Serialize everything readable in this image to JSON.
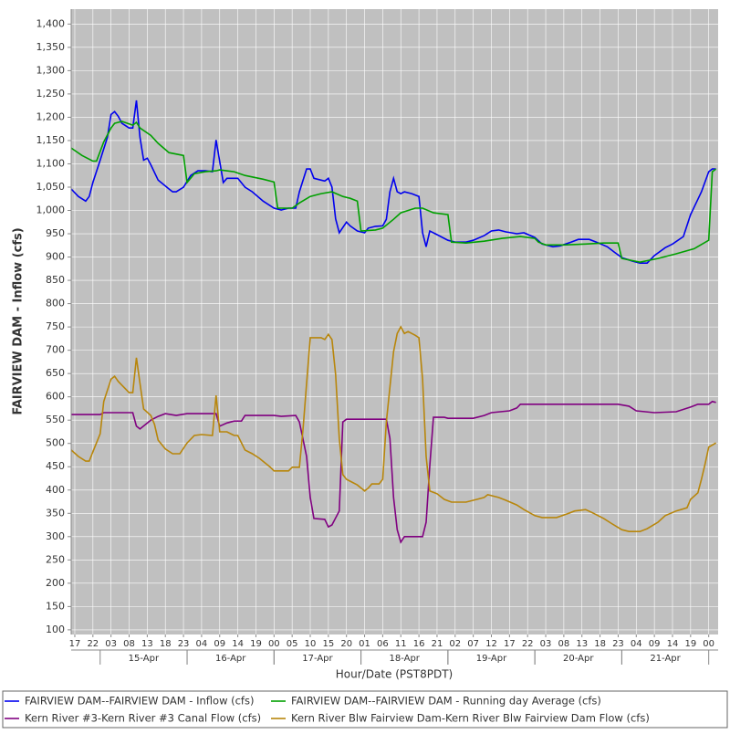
{
  "chart_data": {
    "type": "line",
    "y_label": "FAIRVIEW DAM - Inflow (cfs)",
    "x_label": "Hour/Date (PST8PDT)",
    "xlim": [
      16,
      194.6
    ],
    "ylim": [
      90,
      1432
    ],
    "grid": true,
    "yticks": [
      100,
      150,
      200,
      250,
      300,
      350,
      400,
      450,
      500,
      550,
      600,
      650,
      700,
      750,
      800,
      850,
      900,
      950,
      {
        "value": 1000,
        "label": "1,000"
      },
      {
        "value": 1050,
        "label": "1,050"
      },
      {
        "value": 1100,
        "label": "1,100"
      },
      {
        "value": 1150,
        "label": "1,150"
      },
      {
        "value": 1200,
        "label": "1,200"
      },
      {
        "value": 1250,
        "label": "1,250"
      },
      {
        "value": 1300,
        "label": "1,300"
      },
      {
        "value": 1350,
        "label": "1,350"
      },
      {
        "value": 1400,
        "label": "1,400"
      }
    ],
    "xticks": [
      {
        "value": 17,
        "label": "17"
      },
      {
        "value": 22,
        "label": "22"
      },
      {
        "value": 27,
        "label": "03"
      },
      {
        "value": 32,
        "label": "08"
      },
      {
        "value": 37,
        "label": "13"
      },
      {
        "value": 42,
        "label": "18"
      },
      {
        "value": 47,
        "label": "23"
      },
      {
        "value": 52,
        "label": "04"
      },
      {
        "value": 57,
        "label": "09"
      },
      {
        "value": 62,
        "label": "14"
      },
      {
        "value": 67,
        "label": "19"
      },
      {
        "value": 72,
        "label": "00"
      },
      {
        "value": 77,
        "label": "05"
      },
      {
        "value": 82,
        "label": "10"
      },
      {
        "value": 87,
        "label": "15"
      },
      {
        "value": 92,
        "label": "20"
      },
      {
        "value": 97,
        "label": "01"
      },
      {
        "value": 102,
        "label": "06"
      },
      {
        "value": 107,
        "label": "11"
      },
      {
        "value": 112,
        "label": "16"
      },
      {
        "value": 117,
        "label": "21"
      },
      {
        "value": 122,
        "label": "02"
      },
      {
        "value": 127,
        "label": "07"
      },
      {
        "value": 132,
        "label": "12"
      },
      {
        "value": 137,
        "label": "17"
      },
      {
        "value": 142,
        "label": "22"
      },
      {
        "value": 147,
        "label": "03"
      },
      {
        "value": 152,
        "label": "08"
      },
      {
        "value": 157,
        "label": "13"
      },
      {
        "value": 162,
        "label": "18"
      },
      {
        "value": 167,
        "label": "23"
      },
      {
        "value": 172,
        "label": "04"
      },
      {
        "value": 177,
        "label": "09"
      },
      {
        "value": 182,
        "label": "14"
      },
      {
        "value": 187,
        "label": "19"
      },
      {
        "value": 192,
        "label": "00"
      }
    ],
    "date_labels": [
      {
        "value": 36,
        "label": "15-Apr"
      },
      {
        "value": 60,
        "label": "16-Apr"
      },
      {
        "value": 84,
        "label": "17-Apr"
      },
      {
        "value": 108,
        "label": "18-Apr"
      },
      {
        "value": 132,
        "label": "19-Apr"
      },
      {
        "value": 156,
        "label": "20-Apr"
      },
      {
        "value": 180,
        "label": "21-Apr"
      }
    ],
    "series": [
      {
        "name": "FAIRVIEW DAM--FAIRVIEW DAM - Inflow  (cfs)",
        "color": "#0000ee",
        "x": [
          16,
          18,
          20,
          21,
          22,
          24,
          26,
          27,
          28,
          29,
          30,
          32,
          33,
          34,
          35,
          36,
          37,
          38,
          40,
          43,
          44,
          45,
          47,
          49,
          51,
          53,
          55,
          56,
          58,
          59,
          61,
          62,
          64,
          66,
          69,
          72,
          74,
          76,
          78,
          79,
          81,
          82,
          83,
          85,
          86,
          87,
          88,
          89,
          90,
          92,
          93,
          95,
          97,
          98,
          100,
          102,
          103,
          104,
          105,
          106,
          107,
          108,
          110,
          112,
          113,
          114,
          115,
          117,
          120,
          122,
          125,
          127,
          130,
          132,
          134,
          136,
          139,
          141,
          144,
          146,
          149,
          151,
          154,
          156,
          159,
          161,
          164,
          166,
          168,
          171,
          173,
          175,
          177,
          180,
          182,
          185,
          187,
          190,
          192,
          193,
          194
        ],
        "values": [
          1046,
          1030,
          1020,
          1030,
          1060,
          1108,
          1157,
          1206,
          1212,
          1202,
          1187,
          1177,
          1177,
          1236,
          1157,
          1108,
          1112,
          1098,
          1065,
          1046,
          1040,
          1040,
          1050,
          1075,
          1085,
          1085,
          1083,
          1151,
          1060,
          1069,
          1069,
          1069,
          1050,
          1040,
          1020,
          1005,
          1001,
          1005,
          1005,
          1040,
          1089,
          1089,
          1069,
          1065,
          1063,
          1069,
          1050,
          982,
          952,
          975,
          967,
          956,
          952,
          962,
          966,
          967,
          981,
          1040,
          1069,
          1040,
          1036,
          1040,
          1036,
          1030,
          952,
          922,
          956,
          948,
          936,
          932,
          932,
          936,
          946,
          956,
          958,
          954,
          950,
          952,
          942,
          928,
          922,
          924,
          932,
          938,
          938,
          932,
          922,
          910,
          899,
          891,
          887,
          887,
          903,
          920,
          928,
          944,
          991,
          1040,
          1083,
          1089,
          1089
        ]
      },
      {
        "name": "FAIRVIEW DAM--FAIRVIEW DAM - Running day Average  (cfs)",
        "color": "#00a000",
        "x": [
          16,
          19,
          22,
          23,
          25,
          27,
          28,
          30,
          33,
          34,
          35,
          38,
          40,
          43,
          47,
          48,
          50,
          53,
          56,
          57,
          61,
          64,
          69,
          72,
          73,
          77,
          79,
          82,
          85,
          88,
          91,
          93,
          95,
          96,
          100,
          102,
          105,
          107,
          111,
          113,
          116,
          120,
          121,
          125,
          130,
          135,
          140,
          144,
          145,
          147,
          152,
          158,
          163,
          167,
          168,
          173,
          178,
          183,
          188,
          192,
          193,
          194
        ],
        "values": [
          1134,
          1118,
          1106,
          1106,
          1147,
          1177,
          1187,
          1191,
          1183,
          1189,
          1177,
          1161,
          1144,
          1124,
          1118,
          1060,
          1079,
          1083,
          1085,
          1087,
          1083,
          1075,
          1067,
          1061,
          1005,
          1005,
          1016,
          1030,
          1036,
          1040,
          1030,
          1026,
          1020,
          956,
          958,
          962,
          981,
          995,
          1005,
          1005,
          995,
          991,
          932,
          930,
          934,
          940,
          944,
          940,
          932,
          926,
          926,
          928,
          930,
          930,
          897,
          889,
          897,
          907,
          918,
          936,
          1083,
          1089
        ]
      },
      {
        "name": "Kern River #3-Kern River #3 Canal Flow  (cfs)",
        "color": "#800080",
        "x": [
          16,
          24,
          25,
          33,
          34,
          35,
          38,
          40,
          42,
          45,
          48,
          56,
          57,
          59,
          61,
          63,
          64,
          72,
          74,
          78,
          79,
          81,
          82,
          83,
          86,
          87,
          88,
          90,
          91,
          92,
          96,
          103,
          104,
          105,
          106,
          107,
          108,
          110,
          113,
          114,
          115,
          116,
          119,
          120,
          127,
          130,
          132,
          137,
          139,
          140,
          147,
          167,
          170,
          172,
          177,
          183,
          187,
          189,
          192,
          193,
          194
        ],
        "values": [
          562,
          562,
          566,
          566,
          537,
          531,
          550,
          558,
          564,
          560,
          564,
          564,
          537,
          544,
          548,
          548,
          560,
          560,
          558,
          560,
          546,
          472,
          384,
          339,
          337,
          321,
          325,
          355,
          546,
          552,
          552,
          552,
          511,
          384,
          315,
          288,
          300,
          300,
          300,
          331,
          452,
          556,
          556,
          554,
          554,
          560,
          566,
          570,
          576,
          584,
          584,
          584,
          580,
          570,
          566,
          568,
          578,
          584,
          584,
          590,
          588
        ]
      },
      {
        "name": "Kern River Blw Fairview Dam-Kern River Blw Fairview Dam Flow  (cfs)",
        "color": "#b8860b",
        "x": [
          16,
          18,
          20,
          21,
          22,
          24,
          25,
          27,
          28,
          29,
          30,
          32,
          33,
          34,
          35,
          36,
          38,
          39,
          40,
          42,
          44,
          46,
          48,
          50,
          52,
          55,
          56,
          57,
          59,
          61,
          62,
          64,
          66,
          68,
          71,
          72,
          76,
          77,
          79,
          80,
          81,
          82,
          85,
          86,
          87,
          88,
          89,
          90,
          91,
          92,
          95,
          97,
          98,
          99,
          101,
          102,
          103,
          105,
          106,
          107,
          108,
          109,
          111,
          112,
          113,
          114,
          115,
          117,
          119,
          121,
          125,
          128,
          130,
          131,
          134,
          136,
          139,
          141,
          144,
          146,
          150,
          153,
          155,
          158,
          160,
          163,
          165,
          168,
          170,
          173,
          175,
          178,
          180,
          183,
          186,
          187,
          189,
          190,
          191,
          192,
          194
        ],
        "values": [
          486,
          472,
          462,
          462,
          482,
          521,
          590,
          638,
          644,
          633,
          625,
          609,
          609,
          684,
          629,
          574,
          560,
          541,
          507,
          488,
          478,
          478,
          501,
          517,
          519,
          517,
          603,
          525,
          525,
          517,
          517,
          486,
          478,
          468,
          449,
          441,
          441,
          449,
          449,
          531,
          629,
          727,
          727,
          723,
          734,
          723,
          648,
          511,
          433,
          423,
          411,
          398,
          404,
          413,
          413,
          423,
          546,
          697,
          736,
          750,
          736,
          740,
          732,
          727,
          638,
          472,
          398,
          392,
          380,
          374,
          374,
          380,
          384,
          390,
          384,
          378,
          368,
          358,
          345,
          341,
          341,
          349,
          355,
          358,
          351,
          339,
          329,
          315,
          311,
          311,
          317,
          331,
          345,
          355,
          362,
          380,
          394,
          423,
          456,
          492,
          501
        ]
      }
    ]
  }
}
